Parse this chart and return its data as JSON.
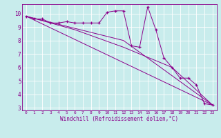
{
  "xlabel": "Windchill (Refroidissement éolien,°C)",
  "background_color": "#c8ecec",
  "line_color": "#8b008b",
  "xlim": [
    -0.5,
    23.5
  ],
  "ylim": [
    2.8,
    10.7
  ],
  "yticks": [
    3,
    4,
    5,
    6,
    7,
    8,
    9,
    10
  ],
  "xticks": [
    0,
    1,
    2,
    3,
    4,
    5,
    6,
    7,
    8,
    9,
    10,
    11,
    12,
    13,
    14,
    15,
    16,
    17,
    18,
    19,
    20,
    21,
    22,
    23
  ],
  "series": [
    {
      "x": [
        0,
        1,
        2,
        3,
        4,
        5,
        6,
        7,
        8,
        9,
        10,
        11,
        12,
        13,
        14,
        15,
        16,
        17,
        18,
        19,
        20,
        21,
        22,
        23
      ],
      "y": [
        9.8,
        9.6,
        9.6,
        9.3,
        9.3,
        9.4,
        9.3,
        9.3,
        9.3,
        9.3,
        10.1,
        10.2,
        10.2,
        7.6,
        7.5,
        10.5,
        8.8,
        6.7,
        6.0,
        5.2,
        5.2,
        4.7,
        3.3,
        3.2
      ],
      "marker": "+"
    },
    {
      "x": [
        0,
        23
      ],
      "y": [
        9.8,
        3.2
      ],
      "marker": null
    },
    {
      "x": [
        0,
        12,
        23
      ],
      "y": [
        9.8,
        8.0,
        3.2
      ],
      "marker": null
    },
    {
      "x": [
        0,
        6,
        12,
        18,
        23
      ],
      "y": [
        9.8,
        8.8,
        7.5,
        6.0,
        3.2
      ],
      "marker": null
    }
  ]
}
